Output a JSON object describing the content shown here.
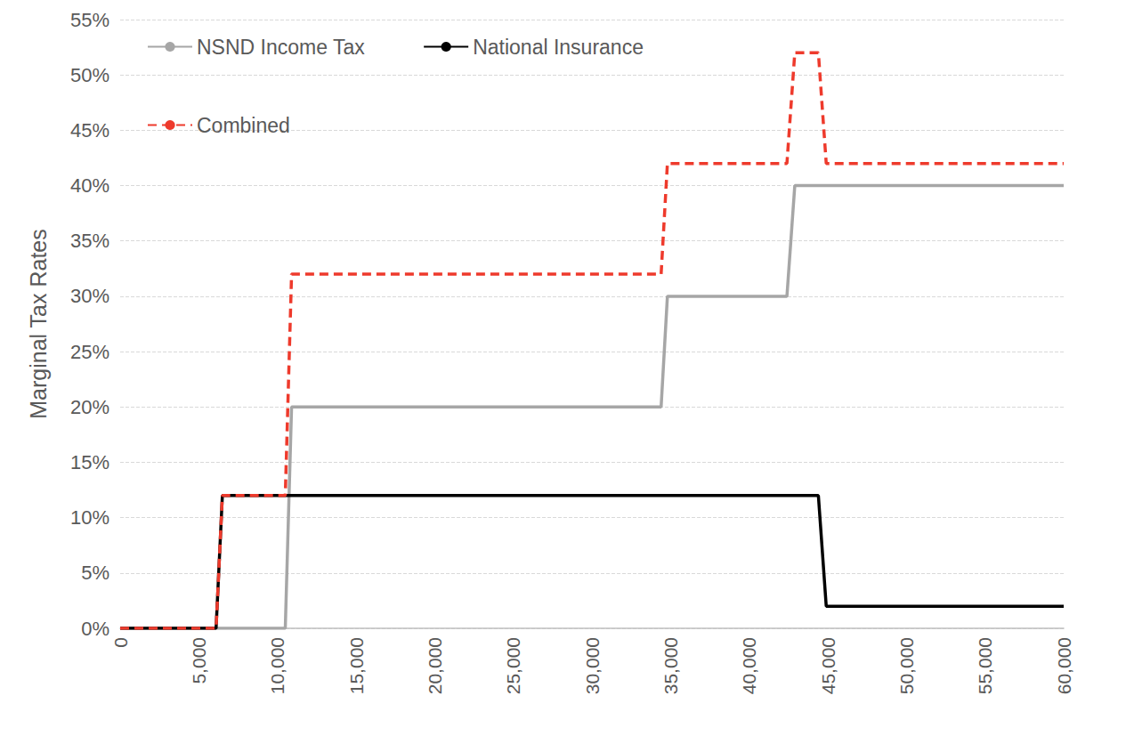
{
  "chart_data": {
    "type": "line",
    "x": [
      0,
      6100,
      6500,
      10500,
      10900,
      34400,
      34800,
      42400,
      42900,
      44400,
      44900,
      60000
    ],
    "series": [
      {
        "name": "NSND Income Tax",
        "color": "#a6a6a6",
        "line_style": "solid",
        "values": [
          0,
          0,
          0,
          0,
          20,
          20,
          30,
          30,
          40,
          40,
          40,
          40
        ]
      },
      {
        "name": "National Insurance",
        "color": "#000000",
        "line_style": "solid",
        "values": [
          0,
          0,
          12,
          12,
          12,
          12,
          12,
          12,
          12,
          12,
          2,
          2
        ]
      },
      {
        "name": "Combined",
        "color": "#ee3a2c",
        "line_style": "dashed",
        "values": [
          0,
          0,
          12,
          12,
          32,
          32,
          42,
          42,
          52,
          52,
          42,
          42
        ]
      }
    ],
    "xlim": [
      0,
      60000
    ],
    "xticks": [
      0,
      {
        "value": 5000,
        "label": "5,000"
      },
      {
        "value": 10000,
        "label": "10,000"
      },
      {
        "value": 15000,
        "label": "15,000"
      },
      {
        "value": 20000,
        "label": "20,000"
      },
      {
        "value": 25000,
        "label": "25,000"
      },
      {
        "value": 30000,
        "label": "30,000"
      },
      {
        "value": 35000,
        "label": "35,000"
      },
      {
        "value": 40000,
        "label": "40,000"
      },
      {
        "value": 45000,
        "label": "45,000"
      },
      {
        "value": 50000,
        "label": "50,000"
      },
      {
        "value": 55000,
        "label": "55,000"
      },
      {
        "value": 60000,
        "label": "60,000"
      }
    ],
    "ylim": [
      0,
      55
    ],
    "yticks": [
      {
        "value": 0,
        "label": "0%"
      },
      {
        "value": 5,
        "label": "5%"
      },
      {
        "value": 10,
        "label": "10%"
      },
      {
        "value": 15,
        "label": "15%"
      },
      {
        "value": 20,
        "label": "20%"
      },
      {
        "value": 25,
        "label": "25%"
      },
      {
        "value": 30,
        "label": "30%"
      },
      {
        "value": 35,
        "label": "35%"
      },
      {
        "value": 40,
        "label": "40%"
      },
      {
        "value": 45,
        "label": "45%"
      },
      {
        "value": 50,
        "label": "50%"
      },
      {
        "value": 55,
        "label": "55%"
      }
    ],
    "y_label": "Marginal Tax Rates",
    "grid": true,
    "legend": "upper left"
  }
}
